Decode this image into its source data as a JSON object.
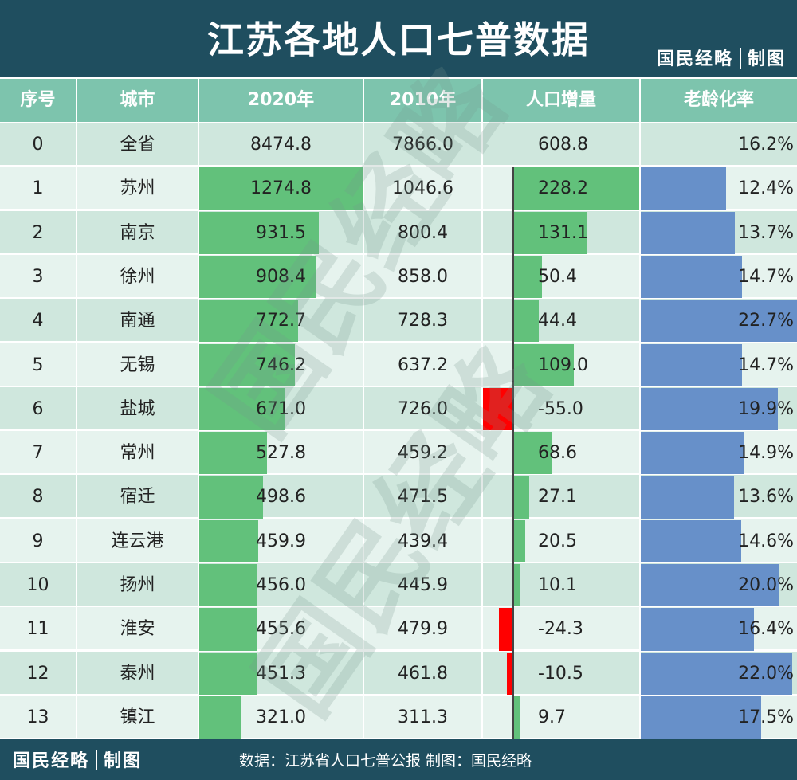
{
  "header": {
    "title": "江苏各地人口七普数据",
    "brand": "国民经略",
    "brand_suffix": "制图"
  },
  "columns": [
    "序号",
    "城市",
    "2020年",
    "2010年",
    "人口增量",
    "老龄化率"
  ],
  "watermark": "国民经略",
  "footer": {
    "brand": "国民经略",
    "brand_suffix": "制图",
    "source": "数据：江苏省人口七普公报   制图：国民经略"
  },
  "colors": {
    "header_bg": "#1f4e5f",
    "column_header_bg": "#7dc4ad",
    "row_light": "#e6f3ee",
    "row_dark": "#cfe7dd",
    "population_bar": "#62c17b",
    "increase_positive": "#62c17b",
    "increase_negative": "#ff0000",
    "aging_bar": "#6790c9"
  },
  "chart_data": {
    "type": "table",
    "title": "江苏各地人口七普数据",
    "columns": [
      "序号",
      "城市",
      "2020年",
      "2010年",
      "人口增量",
      "老龄化率"
    ],
    "rows": [
      {
        "idx": "0",
        "city": "全省",
        "pop2020": "8474.8",
        "pop2010": "7866.0",
        "increase": "608.8",
        "aging": "16.2%",
        "pop2020_value": 8474.8,
        "increase_value": 608.8,
        "aging_value": 16.2
      },
      {
        "idx": "1",
        "city": "苏州",
        "pop2020": "1274.8",
        "pop2010": "1046.6",
        "increase": "228.2",
        "aging": "12.4%",
        "pop2020_value": 1274.8,
        "increase_value": 228.2,
        "aging_value": 12.4
      },
      {
        "idx": "2",
        "city": "南京",
        "pop2020": "931.5",
        "pop2010": "800.4",
        "increase": "131.1",
        "aging": "13.7%",
        "pop2020_value": 931.5,
        "increase_value": 131.1,
        "aging_value": 13.7
      },
      {
        "idx": "3",
        "city": "徐州",
        "pop2020": "908.4",
        "pop2010": "858.0",
        "increase": "50.4",
        "aging": "14.7%",
        "pop2020_value": 908.4,
        "increase_value": 50.4,
        "aging_value": 14.7
      },
      {
        "idx": "4",
        "city": "南通",
        "pop2020": "772.7",
        "pop2010": "728.3",
        "increase": "44.4",
        "aging": "22.7%",
        "pop2020_value": 772.7,
        "increase_value": 44.4,
        "aging_value": 22.7
      },
      {
        "idx": "5",
        "city": "无锡",
        "pop2020": "746.2",
        "pop2010": "637.2",
        "increase": "109.0",
        "aging": "14.7%",
        "pop2020_value": 746.2,
        "increase_value": 109.0,
        "aging_value": 14.7
      },
      {
        "idx": "6",
        "city": "盐城",
        "pop2020": "671.0",
        "pop2010": "726.0",
        "increase": "-55.0",
        "aging": "19.9%",
        "pop2020_value": 671.0,
        "increase_value": -55.0,
        "aging_value": 19.9
      },
      {
        "idx": "7",
        "city": "常州",
        "pop2020": "527.8",
        "pop2010": "459.2",
        "increase": "68.6",
        "aging": "14.9%",
        "pop2020_value": 527.8,
        "increase_value": 68.6,
        "aging_value": 14.9
      },
      {
        "idx": "8",
        "city": "宿迁",
        "pop2020": "498.6",
        "pop2010": "471.5",
        "increase": "27.1",
        "aging": "13.6%",
        "pop2020_value": 498.6,
        "increase_value": 27.1,
        "aging_value": 13.6
      },
      {
        "idx": "9",
        "city": "连云港",
        "pop2020": "459.9",
        "pop2010": "439.4",
        "increase": "20.5",
        "aging": "14.6%",
        "pop2020_value": 459.9,
        "increase_value": 20.5,
        "aging_value": 14.6
      },
      {
        "idx": "10",
        "city": "扬州",
        "pop2020": "456.0",
        "pop2010": "445.9",
        "increase": "10.1",
        "aging": "20.0%",
        "pop2020_value": 456.0,
        "increase_value": 10.1,
        "aging_value": 20.0
      },
      {
        "idx": "11",
        "city": "淮安",
        "pop2020": "455.6",
        "pop2010": "479.9",
        "increase": "-24.3",
        "aging": "16.4%",
        "pop2020_value": 455.6,
        "increase_value": -24.3,
        "aging_value": 16.4
      },
      {
        "idx": "12",
        "city": "泰州",
        "pop2020": "451.3",
        "pop2010": "461.8",
        "increase": "-10.5",
        "aging": "22.0%",
        "pop2020_value": 451.3,
        "increase_value": -10.5,
        "aging_value": 22.0
      },
      {
        "idx": "13",
        "city": "镇江",
        "pop2020": "321.0",
        "pop2010": "311.3",
        "increase": "9.7",
        "aging": "17.5%",
        "pop2020_value": 321.0,
        "increase_value": 9.7,
        "aging_value": 17.5
      }
    ]
  }
}
